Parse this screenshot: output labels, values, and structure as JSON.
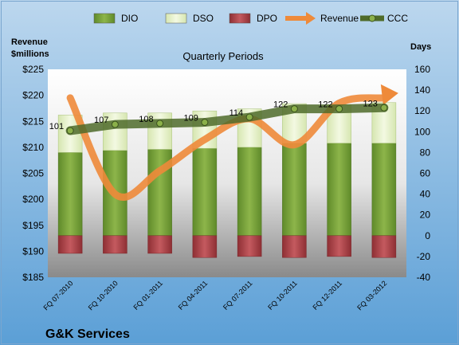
{
  "chart_data": {
    "type": "bar",
    "title": "Quarterly Periods",
    "company": "G&K Services",
    "left_axis": {
      "label_line1": "Revenue",
      "label_line2": "$millions",
      "range": [
        185,
        225
      ],
      "ticks": [
        "$185",
        "$190",
        "$195",
        "$200",
        "$205",
        "$210",
        "$215",
        "$220",
        "$225"
      ]
    },
    "right_axis": {
      "label": "Days",
      "range": [
        -40,
        160
      ],
      "ticks": [
        "-40",
        "-20",
        "0",
        "20",
        "40",
        "60",
        "80",
        "100",
        "120",
        "140",
        "160"
      ]
    },
    "categories": [
      "FQ 07-2010",
      "FQ 10-2010",
      "FQ 01-2011",
      "FQ 04-2011",
      "FQ 07-2011",
      "FQ 10-2011",
      "FQ 12-2011",
      "FQ 03-2012"
    ],
    "series": [
      {
        "name": "DIO",
        "kind": "stacked-bar",
        "color": "#7aa03a",
        "values": [
          80,
          82,
          83,
          84,
          85,
          89,
          89,
          89
        ]
      },
      {
        "name": "DSO",
        "kind": "stacked-bar",
        "color": "#e4efc9",
        "values": [
          36,
          36,
          35,
          36,
          37,
          38,
          37,
          39
        ]
      },
      {
        "name": "DPO",
        "kind": "negative-bar",
        "color": "#b5484d",
        "values": [
          -17,
          -17,
          -17,
          -21,
          -20,
          -21,
          -20,
          -21
        ]
      },
      {
        "name": "Revenue",
        "kind": "line",
        "axis": "left",
        "color": "#ee8a3a",
        "values": [
          219.5,
          201.0,
          205.5,
          211.5,
          215.5,
          210.5,
          218.5,
          219.5
        ]
      },
      {
        "name": "CCC",
        "kind": "line",
        "axis": "right",
        "color": "#4f6b2a",
        "values": [
          101,
          107,
          108,
          109,
          114,
          122,
          122,
          123
        ],
        "labels": [
          "101",
          "107",
          "108",
          "109",
          "114",
          "122",
          "122",
          "123"
        ]
      }
    ],
    "legend": {
      "position": "top",
      "items": [
        "DIO",
        "DSO",
        "DPO",
        "Revenue",
        "CCC"
      ]
    },
    "grid": false
  }
}
